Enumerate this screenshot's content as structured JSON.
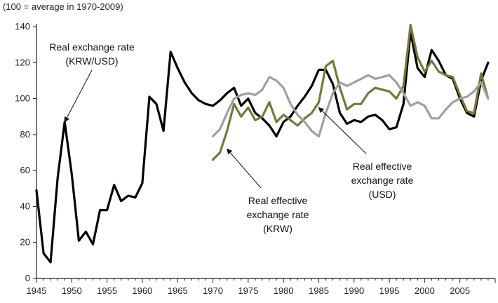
{
  "chart_data": {
    "type": "line",
    "unit_label": "(100 = average in 1970-2009)",
    "xlim": [
      1945,
      2010
    ],
    "ylim": [
      0,
      140
    ],
    "x_ticks": [
      "1945",
      "1950",
      "1955",
      "1960",
      "1965",
      "1970",
      "1975",
      "1980",
      "1985",
      "1990",
      "1995",
      "2000",
      "2005"
    ],
    "y_ticks": [
      "0",
      "20",
      "40",
      "60",
      "80",
      "100",
      "120",
      "140"
    ],
    "grid": false,
    "legend": "none",
    "series": [
      {
        "key": "rer_krw_usd",
        "color": "#000000",
        "x": [
          1945,
          1946,
          1947,
          1948,
          1949,
          1950,
          1951,
          1952,
          1953,
          1954,
          1955,
          1956,
          1957,
          1958,
          1959,
          1960,
          1961,
          1962,
          1963,
          1964,
          1965,
          1966,
          1967,
          1968,
          1969,
          1970,
          1971,
          1972,
          1973,
          1974,
          1975,
          1976,
          1977,
          1978,
          1979,
          1980,
          1981,
          1982,
          1983,
          1984,
          1985,
          1986,
          1987,
          1988,
          1989,
          1990,
          1991,
          1992,
          1993,
          1994,
          1995,
          1996,
          1997,
          1998,
          1999,
          2000,
          2001,
          2002,
          2003,
          2004,
          2005,
          2006,
          2007,
          2008,
          2009
        ],
        "y": [
          49,
          14,
          9,
          56,
          87,
          58,
          21,
          26,
          19,
          38,
          38,
          52,
          43,
          46,
          45,
          53,
          101,
          97,
          82,
          126,
          117,
          109,
          103,
          99,
          97,
          96,
          99,
          103,
          106,
          96,
          100,
          92,
          89,
          85,
          79,
          87,
          90,
          96,
          101,
          107,
          116,
          116,
          108,
          92,
          86,
          88,
          87,
          90,
          91,
          88,
          83,
          84,
          97,
          137,
          117,
          112,
          127,
          121,
          113,
          111,
          100,
          92,
          90,
          110,
          120
        ]
      },
      {
        "key": "reer_krw",
        "color": "#77773f",
        "x": [
          1970,
          1971,
          1972,
          1973,
          1974,
          1975,
          1976,
          1977,
          1978,
          1979,
          1980,
          1981,
          1982,
          1983,
          1984,
          1985,
          1986,
          1987,
          1988,
          1989,
          1990,
          1991,
          1992,
          1993,
          1994,
          1995,
          1996,
          1997,
          1998,
          1999,
          2000,
          2001,
          2002,
          2003,
          2004,
          2005,
          2006,
          2007,
          2008,
          2009
        ],
        "y": [
          66,
          70,
          82,
          97,
          90,
          95,
          88,
          90,
          98,
          87,
          91,
          88,
          85,
          89,
          92,
          98,
          118,
          121,
          106,
          94,
          97,
          97,
          103,
          106,
          105,
          104,
          100,
          107,
          141,
          123,
          115,
          121,
          115,
          113,
          112,
          102,
          93,
          92,
          114,
          100
        ]
      },
      {
        "key": "reer_usd",
        "color": "#a0a0a0",
        "x": [
          1970,
          1971,
          1972,
          1973,
          1974,
          1975,
          1976,
          1977,
          1978,
          1979,
          1980,
          1981,
          1982,
          1983,
          1984,
          1985,
          1986,
          1987,
          1988,
          1989,
          1990,
          1991,
          1992,
          1993,
          1994,
          1995,
          1996,
          1997,
          1998,
          1999,
          2000,
          2001,
          2002,
          2003,
          2004,
          2005,
          2006,
          2007,
          2008,
          2009
        ],
        "y": [
          79,
          83,
          92,
          100,
          102,
          103,
          102,
          105,
          112,
          110,
          106,
          97,
          91,
          87,
          82,
          79,
          92,
          103,
          109,
          107,
          109,
          111,
          113,
          111,
          112,
          113,
          109,
          103,
          96,
          98,
          96,
          89,
          89,
          94,
          98,
          100,
          101,
          104,
          109,
          100
        ]
      }
    ],
    "annotations": [
      {
        "key": "rer",
        "lines": [
          "Real exchange rate",
          "(KRW/USD)"
        ],
        "arrow_to": [
          1949,
          87
        ]
      },
      {
        "key": "reer_krw",
        "lines": [
          "Real effective",
          "exchange rate",
          "(KRW)"
        ],
        "arrow_to": [
          1972,
          72
        ]
      },
      {
        "key": "reer_usd",
        "lines": [
          "Real effective",
          "exchange rate",
          "(USD)"
        ],
        "arrow_to": [
          1985,
          95
        ]
      }
    ]
  }
}
